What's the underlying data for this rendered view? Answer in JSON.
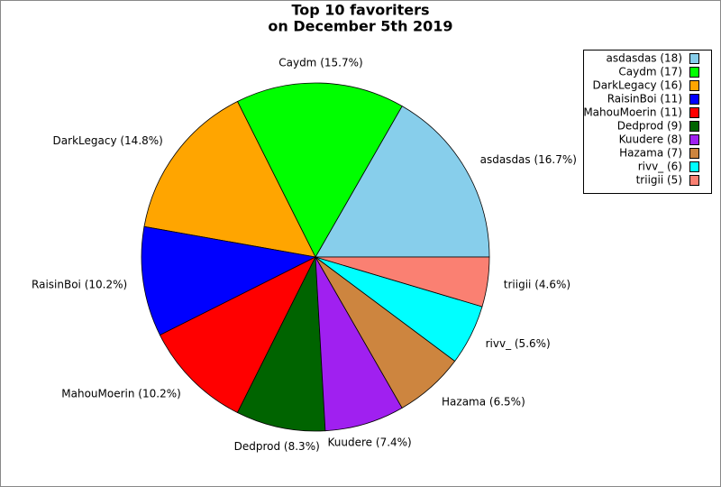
{
  "chart_data": {
    "type": "pie",
    "title": "Top 10 favoriters",
    "subtitle": "on December 5th 2019",
    "categories": [
      "asdasdas",
      "Caydm",
      "DarkLegacy",
      "RaisinBoi",
      "MahouMoerin",
      "Dedprod",
      "Kuudere",
      "Hazama",
      "rivv_",
      "triigii"
    ],
    "values": [
      16.7,
      15.7,
      14.8,
      10.2,
      10.2,
      8.3,
      7.4,
      6.5,
      5.6,
      4.6
    ],
    "value_labels": [
      "asdasdas (16.7%)",
      "Caydm (15.7%)",
      "DarkLegacy (14.8%)",
      "RaisinBoi (10.2%)",
      "MahouMoerin (10.2%)",
      "Dedprod (8.3%)",
      "Kuudere (7.4%)",
      "Hazama (6.5%)",
      "rivv_ (5.6%)",
      "triigii (4.6%)"
    ],
    "legend_labels": [
      "asdasdas (18)",
      "Caydm (17)",
      "DarkLegacy (16)",
      "RaisinBoi (11)",
      "MahouMoerin (11)",
      "Dedprod (9)",
      "Kuudere (8)",
      "Hazama (7)",
      "rivv_ (6)",
      "triigii (5)"
    ],
    "colors": [
      "#87ceeb",
      "#00ff00",
      "#ffa500",
      "#0000ff",
      "#ff0000",
      "#006400",
      "#a020f0",
      "#cd853f",
      "#00ffff",
      "#fa8072"
    ],
    "legend": "top-right"
  }
}
